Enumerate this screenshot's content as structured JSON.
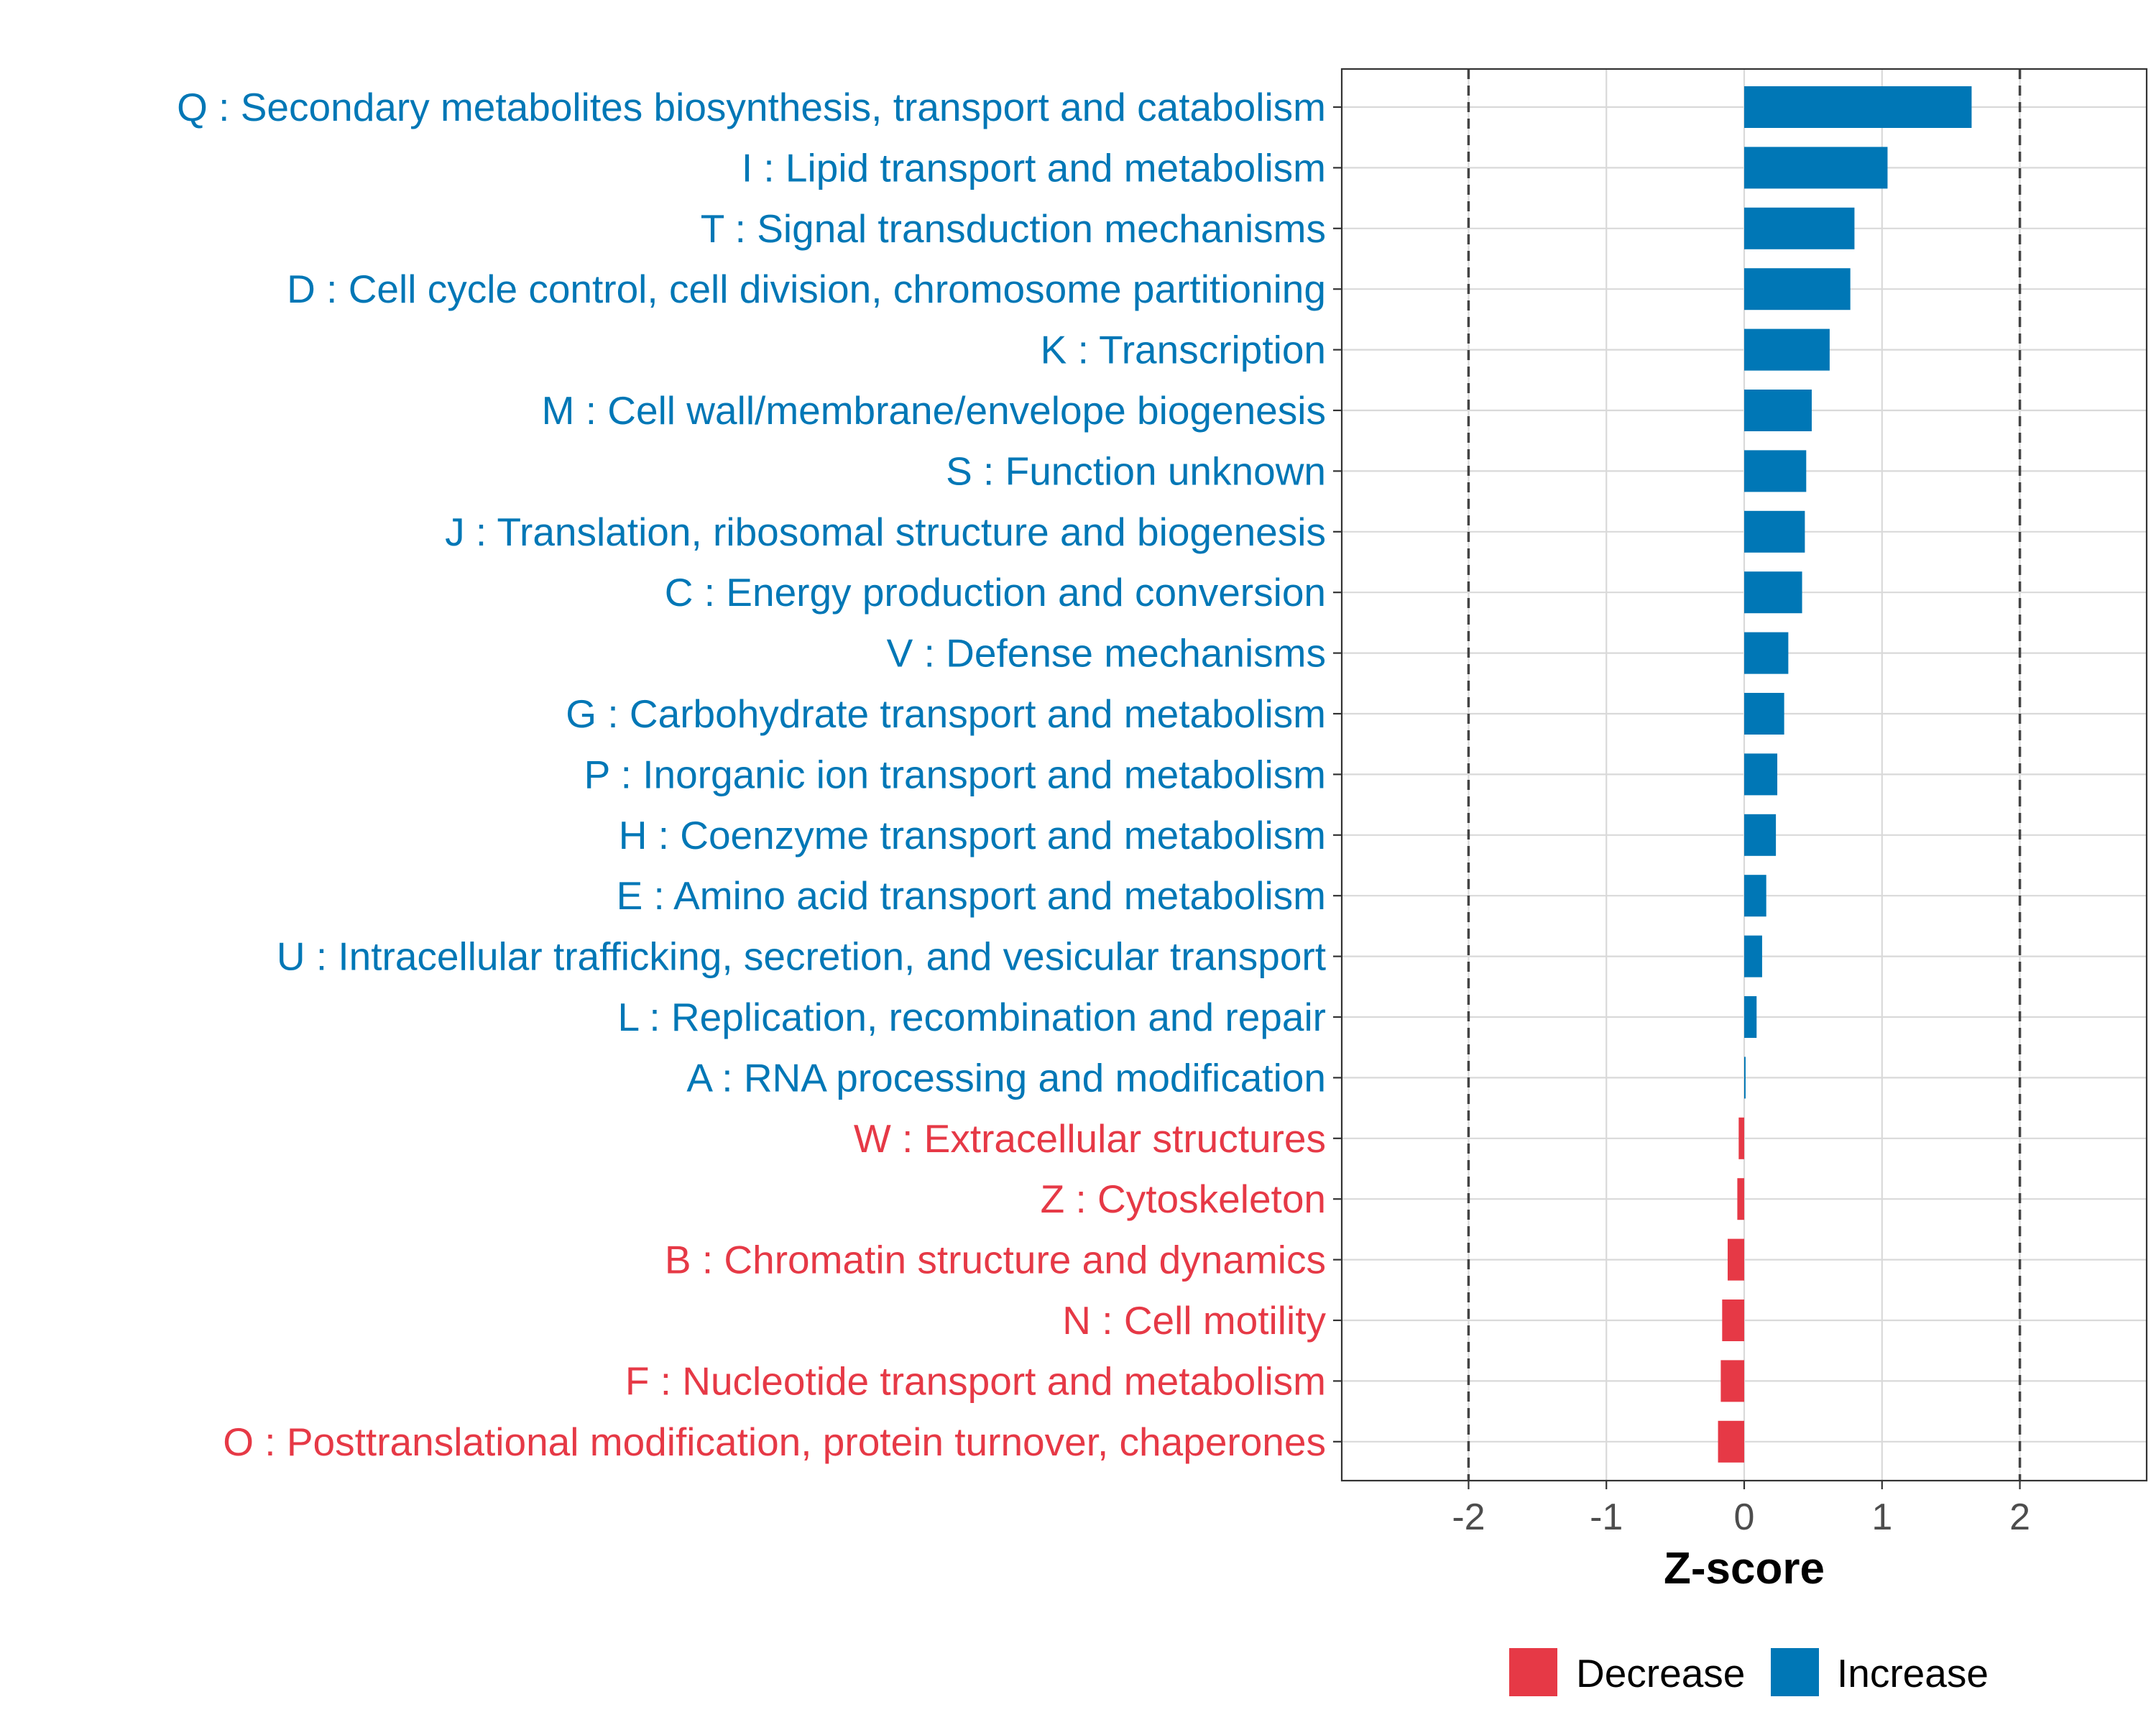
{
  "chart_data": {
    "type": "bar",
    "orientation": "horizontal",
    "title": "",
    "xlabel": "Z-score",
    "ylabel": "",
    "xlim": [
      -2.92,
      2.92
    ],
    "xticks": [
      -2,
      -1,
      0,
      1,
      2
    ],
    "xtick_labels": [
      "-2",
      "-1",
      "0",
      "1",
      "2"
    ],
    "reference_lines": [
      -2,
      2
    ],
    "grid": true,
    "legend_position": "bottom",
    "colors": {
      "Decrease": "#E63946",
      "Increase": "#0077B6"
    },
    "legend": [
      {
        "name": "Decrease",
        "color": "#E63946"
      },
      {
        "name": "Increase",
        "color": "#0077B6"
      }
    ],
    "categories": [
      "Q : Secondary metabolites biosynthesis, transport and catabolism",
      "I : Lipid transport and metabolism",
      "T : Signal transduction mechanisms",
      "D : Cell cycle control, cell division, chromosome partitioning",
      "K : Transcription",
      "M : Cell wall/membrane/envelope biogenesis",
      "S : Function unknown",
      "J : Translation, ribosomal structure and biogenesis",
      "C : Energy production and conversion",
      "V : Defense mechanisms",
      "G : Carbohydrate transport and metabolism",
      "P : Inorganic ion transport and metabolism",
      "H : Coenzyme transport and metabolism",
      "E : Amino acid transport and metabolism",
      "U : Intracellular trafficking, secretion, and vesicular transport",
      "L : Replication, recombination and repair",
      "A : RNA processing and modification",
      "W : Extracellular structures",
      "Z : Cytoskeleton",
      "B : Chromatin structure and dynamics",
      "N : Cell motility",
      "F : Nucleotide transport and metabolism",
      "O : Posttranslational modification, protein turnover, chaperones"
    ],
    "values": [
      1.65,
      1.04,
      0.8,
      0.77,
      0.62,
      0.49,
      0.45,
      0.44,
      0.42,
      0.32,
      0.29,
      0.24,
      0.23,
      0.16,
      0.13,
      0.09,
      0.01,
      -0.04,
      -0.05,
      -0.12,
      -0.16,
      -0.17,
      -0.19
    ],
    "groups": [
      "Increase",
      "Increase",
      "Increase",
      "Increase",
      "Increase",
      "Increase",
      "Increase",
      "Increase",
      "Increase",
      "Increase",
      "Increase",
      "Increase",
      "Increase",
      "Increase",
      "Increase",
      "Increase",
      "Increase",
      "Decrease",
      "Decrease",
      "Decrease",
      "Decrease",
      "Decrease",
      "Decrease"
    ]
  }
}
